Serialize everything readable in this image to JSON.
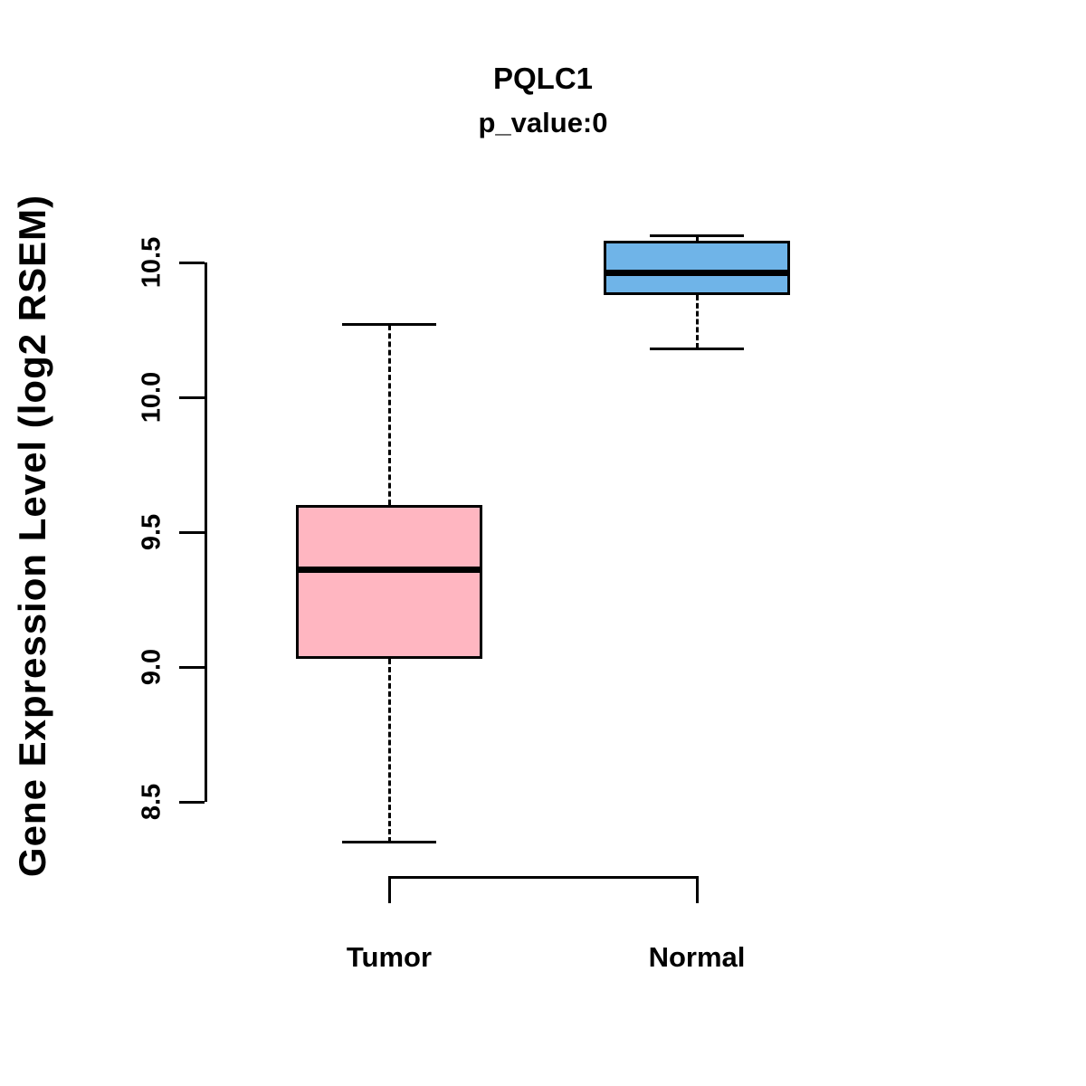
{
  "title": "PQLC1",
  "subtitle": "p_value:0",
  "chart_data": {
    "type": "boxplot",
    "title": "PQLC1",
    "subtitle": "p_value:0",
    "ylabel": "Gene Expression Level (log2 RSEM)",
    "categories": [
      "Tumor",
      "Normal"
    ],
    "yticks": [
      8.5,
      9.0,
      9.5,
      10.0,
      10.5
    ],
    "ylim": [
      8.25,
      10.65
    ],
    "grid": false,
    "legend": "none",
    "series": [
      {
        "name": "Tumor",
        "color": "#FFB6C1",
        "whisker_low": 8.35,
        "q1": 9.03,
        "median": 9.36,
        "q3": 9.6,
        "whisker_high": 10.27
      },
      {
        "name": "Normal",
        "color": "#6FB4E8",
        "whisker_low": 10.18,
        "q1": 10.38,
        "median": 10.46,
        "q3": 10.58,
        "whisker_high": 10.6
      }
    ]
  }
}
